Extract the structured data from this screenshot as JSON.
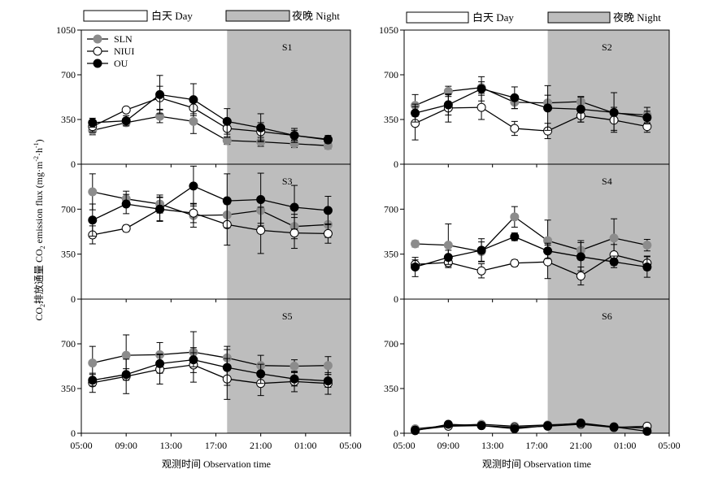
{
  "figure": {
    "ylabel": "CO₂排放通量 CO₂ emission flux (mg·m⁻²·h⁻¹)",
    "ylabel_parts": [
      "CO",
      "2",
      "排放通量 CO",
      "2",
      " emission flux (mg·m",
      "-2",
      "·h",
      "-1",
      ")"
    ],
    "xlabel": "观测时间 Observation time",
    "legend_day": "白天 Day",
    "legend_night": "夜晚 Night",
    "series_names": [
      "SLN",
      "NIUI",
      "OU"
    ],
    "colors": {
      "SLN": "#8c8c8c",
      "NIUI": "#ffffff",
      "OU": "#000000",
      "night_shade": "#bdbdbd",
      "axis": "#000000"
    }
  },
  "chart_data": [
    {
      "type": "line",
      "panel": "S1",
      "x": [
        "06:00",
        "09:00",
        "12:00",
        "15:00",
        "18:00",
        "21:00",
        "00:00",
        "03:00"
      ],
      "x_ticks": [
        "05:00",
        "09:00",
        "13:00",
        "17:00",
        "21:00",
        "01:00",
        "05:00"
      ],
      "xlim": [
        "05:00",
        "05:00 (+1 day)"
      ],
      "ylim": [
        0,
        1050
      ],
      "y_ticks": [
        0,
        350,
        700,
        1050
      ],
      "night_span": [
        "18:00",
        "05:00"
      ],
      "series": [
        {
          "name": "SLN",
          "values": [
            265,
            325,
            375,
            335,
            185,
            175,
            160,
            145
          ],
          "errors": [
            35,
            25,
            50,
            95,
            30,
            35,
            30,
            25
          ]
        },
        {
          "name": "NIUI",
          "values": [
            295,
            425,
            520,
            440,
            280,
            255,
            225,
            190
          ],
          "errors": [
            45,
            15,
            90,
            45,
            70,
            70,
            40,
            20
          ]
        },
        {
          "name": "OU",
          "values": [
            325,
            340,
            545,
            505,
            335,
            285,
            225,
            195
          ],
          "errors": [
            35,
            40,
            150,
            125,
            100,
            110,
            55,
            30
          ]
        }
      ]
    },
    {
      "type": "line",
      "panel": "S2",
      "x": [
        "06:00",
        "09:00",
        "12:00",
        "15:00",
        "18:00",
        "21:00",
        "00:00",
        "03:00"
      ],
      "x_ticks": [
        "05:00",
        "09:00",
        "13:00",
        "17:00",
        "21:00",
        "01:00",
        "05:00"
      ],
      "xlim": [
        "05:00",
        "05:00 (+1 day)"
      ],
      "ylim": [
        0,
        1050
      ],
      "y_ticks": [
        0,
        350,
        700,
        1050
      ],
      "night_span": [
        "18:00",
        "05:00"
      ],
      "series": [
        {
          "name": "SLN",
          "values": [
            460,
            570,
            600,
            485,
            480,
            490,
            400,
            385
          ],
          "errors": [
            85,
            40,
            45,
            50,
            60,
            35,
            45,
            60
          ]
        },
        {
          "name": "NIUI",
          "values": [
            320,
            440,
            445,
            280,
            260,
            380,
            345,
            295
          ],
          "errors": [
            130,
            110,
            95,
            55,
            60,
            50,
            80,
            45
          ]
        },
        {
          "name": "OU",
          "values": [
            400,
            465,
            590,
            520,
            440,
            430,
            405,
            365
          ],
          "errors": [
            70,
            80,
            95,
            85,
            175,
            100,
            155,
            50
          ]
        }
      ]
    },
    {
      "type": "line",
      "panel": "S3",
      "x": [
        "06:00",
        "09:00",
        "12:00",
        "15:00",
        "18:00",
        "21:00",
        "00:00",
        "03:00"
      ],
      "x_ticks": [
        "05:00",
        "09:00",
        "13:00",
        "17:00",
        "21:00",
        "01:00",
        "05:00"
      ],
      "xlim": [
        "05:00",
        "05:00 (+1 day)"
      ],
      "ylim": [
        0,
        1050
      ],
      "y_ticks": [
        0,
        350,
        700,
        1050
      ],
      "night_span": [
        "18:00",
        "05:00"
      ],
      "series": [
        {
          "name": "SLN",
          "values": [
            835,
            780,
            740,
            650,
            655,
            690,
            565,
            580
          ],
          "errors": [
            140,
            60,
            70,
            90,
            95,
            100,
            95,
            100
          ]
        },
        {
          "name": "NIUI",
          "values": [
            500,
            550,
            700,
            670,
            580,
            535,
            515,
            510
          ],
          "errors": [
            70,
            25,
            90,
            75,
            160,
            180,
            120,
            75
          ]
        },
        {
          "name": "OU",
          "values": [
            615,
            740,
            700,
            880,
            765,
            775,
            715,
            690
          ],
          "errors": [
            125,
            75,
            95,
            155,
            210,
            205,
            170,
            110
          ]
        }
      ]
    },
    {
      "type": "line",
      "panel": "S4",
      "x": [
        "06:00",
        "09:00",
        "12:00",
        "15:00",
        "18:00",
        "21:00",
        "00:00",
        "03:00"
      ],
      "x_ticks": [
        "05:00",
        "09:00",
        "13:00",
        "17:00",
        "21:00",
        "01:00",
        "05:00"
      ],
      "xlim": [
        "05:00",
        "05:00 (+1 day)"
      ],
      "ylim": [
        0,
        1050
      ],
      "y_ticks": [
        0,
        350,
        700,
        1050
      ],
      "night_span": [
        "18:00",
        "05:00"
      ],
      "series": [
        {
          "name": "SLN",
          "values": [
            430,
            420,
            370,
            640,
            455,
            380,
            475,
            420
          ],
          "errors": [
            25,
            165,
            75,
            80,
            160,
            75,
            150,
            45
          ]
        },
        {
          "name": "NIUI",
          "values": [
            270,
            285,
            220,
            280,
            290,
            180,
            345,
            280
          ],
          "errors": [
            35,
            40,
            55,
            25,
            130,
            70,
            80,
            55
          ]
        },
        {
          "name": "OU",
          "values": [
            250,
            325,
            380,
            485,
            375,
            330,
            290,
            250
          ],
          "errors": [
            75,
            55,
            90,
            30,
            60,
            110,
            45,
            80
          ]
        }
      ]
    },
    {
      "type": "line",
      "panel": "S5",
      "x": [
        "06:00",
        "09:00",
        "12:00",
        "15:00",
        "18:00",
        "21:00",
        "00:00",
        "03:00"
      ],
      "x_ticks": [
        "05:00",
        "09:00",
        "13:00",
        "17:00",
        "21:00",
        "01:00",
        "05:00"
      ],
      "xlim": [
        "05:00",
        "05:00 (+1 day)"
      ],
      "ylim": [
        0,
        1050
      ],
      "y_ticks": [
        0,
        350,
        700,
        1050
      ],
      "night_span": [
        "18:00",
        "05:00"
      ],
      "series": [
        {
          "name": "SLN",
          "values": [
            550,
            610,
            615,
            635,
            590,
            530,
            525,
            530
          ],
          "errors": [
            130,
            160,
            95,
            160,
            90,
            80,
            50,
            70
          ]
        },
        {
          "name": "NIUI",
          "values": [
            395,
            445,
            500,
            535,
            425,
            390,
            405,
            390
          ],
          "errors": [
            75,
            135,
            115,
            135,
            160,
            95,
            80,
            85
          ]
        },
        {
          "name": "OU",
          "values": [
            415,
            460,
            545,
            575,
            515,
            465,
            425,
            410
          ],
          "errors": [
            45,
            45,
            75,
            55,
            140,
            75,
            55,
            50
          ]
        }
      ]
    },
    {
      "type": "line",
      "panel": "S6",
      "x": [
        "06:00",
        "09:00",
        "12:00",
        "15:00",
        "18:00",
        "21:00",
        "00:00",
        "03:00"
      ],
      "x_ticks": [
        "05:00",
        "09:00",
        "13:00",
        "17:00",
        "21:00",
        "01:00",
        "05:00"
      ],
      "xlim": [
        "05:00",
        "05:00 (+1 day)"
      ],
      "ylim": [
        0,
        1050
      ],
      "y_ticks": [
        0,
        350,
        700,
        1050
      ],
      "night_span": [
        "18:00",
        "05:00"
      ],
      "series": [
        {
          "name": "SLN",
          "values": [
            35,
            60,
            70,
            55,
            65,
            75,
            50,
            40
          ],
          "errors": [
            15,
            15,
            20,
            15,
            15,
            15,
            10,
            10
          ]
        },
        {
          "name": "NIUI",
          "values": [
            25,
            55,
            60,
            45,
            55,
            70,
            45,
            55
          ],
          "errors": [
            10,
            15,
            15,
            10,
            15,
            15,
            10,
            20
          ]
        },
        {
          "name": "OU",
          "values": [
            20,
            70,
            60,
            35,
            60,
            80,
            50,
            15
          ],
          "errors": [
            15,
            15,
            15,
            10,
            15,
            15,
            10,
            10
          ]
        }
      ]
    }
  ]
}
